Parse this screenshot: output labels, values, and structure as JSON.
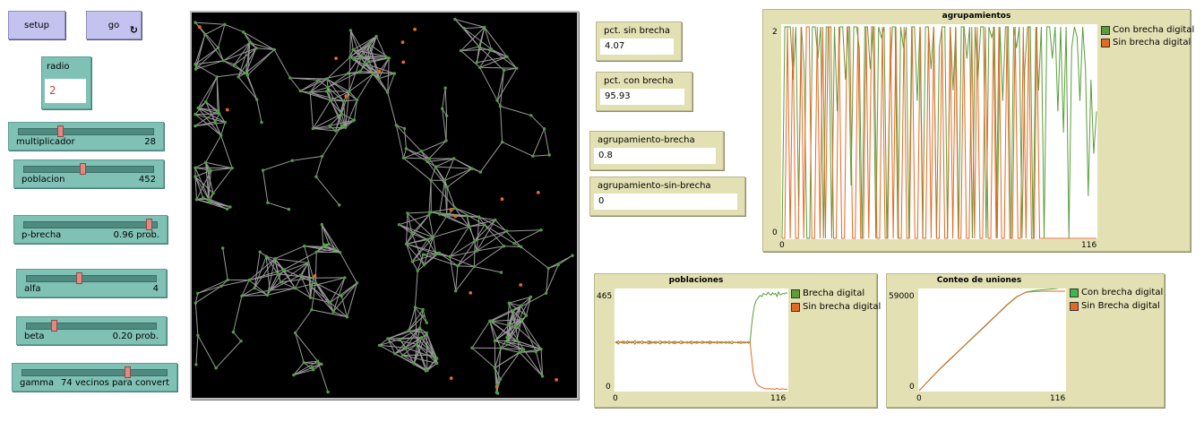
{
  "buttons": {
    "setup": "setup",
    "go": "go",
    "go_forever_glyph": "↻"
  },
  "input_radio": {
    "label": "radio",
    "value": "2"
  },
  "sliders": [
    {
      "label": "multiplicador",
      "value_text": "28",
      "fraction": 0.3
    },
    {
      "label": "poblacion",
      "value_text": "452",
      "fraction": 0.45
    },
    {
      "label": "p-brecha",
      "value_text": "0.96 prob.",
      "fraction": 0.96
    },
    {
      "label": "alfa",
      "value_text": "4",
      "fraction": 0.4
    },
    {
      "label": "beta",
      "value_text": "0.20 prob.",
      "fraction": 0.2
    },
    {
      "label": "gamma",
      "value_text": "74 vecinos para convert",
      "fraction": 0.74
    }
  ],
  "monitors": [
    {
      "label": "pct. sin brecha",
      "value": "4.07"
    },
    {
      "label": "pct. con brecha",
      "value": "95.93"
    },
    {
      "label": "agrupamiento-brecha",
      "value": "0.8"
    },
    {
      "label": "agrupamiento-sin-brecha",
      "value": "0"
    }
  ],
  "colors": {
    "green": "#5a9e3a",
    "orange": "#e36a24",
    "node_green": "#4aa33a",
    "edge_gray": "#9a9a9a",
    "bright_green": "#3cb94a"
  },
  "chart_data": [
    {
      "type": "line",
      "title": "agrupamientos",
      "xlim": [
        0,
        116
      ],
      "ylim": [
        0,
        2
      ],
      "x_ticks": [
        "0",
        "116"
      ],
      "y_ticks": [
        "0",
        "2"
      ],
      "series": [
        {
          "name": "Con brecha digital",
          "color": "#5a9e3a",
          "values": [
            0,
            2,
            2,
            2,
            1.5,
            2,
            0.3,
            2,
            1.6,
            0,
            0,
            2,
            2,
            1.7,
            2,
            0,
            2,
            2,
            0,
            2,
            1.2,
            2,
            2,
            1.5,
            2,
            0.5,
            2,
            2,
            1.8,
            0,
            2,
            2,
            1.6,
            2,
            0,
            2,
            1.9,
            2,
            0,
            1.4,
            2,
            2,
            0,
            2,
            1.8,
            2,
            0,
            2,
            2,
            1.3,
            2,
            0,
            2,
            2,
            1.6,
            2,
            0,
            1.8,
            2,
            2,
            0,
            2,
            1.4,
            2,
            0,
            2,
            2,
            1.7,
            2,
            0,
            2,
            1.5,
            2,
            2,
            0,
            2,
            1.9,
            2,
            0,
            2,
            1.3,
            2,
            2,
            0,
            2,
            1.8,
            2,
            0,
            1.6,
            2,
            2,
            0,
            2,
            1.4,
            2,
            0,
            2,
            2,
            1.7,
            2,
            1.2,
            2,
            1.0,
            2,
            0,
            1.8,
            2,
            1.9,
            1.3,
            2,
            1.6,
            0.4,
            1.5,
            0.8,
            1.2
          ]
        },
        {
          "name": "Sin brecha digital",
          "color": "#e36a24",
          "values": [
            0,
            0,
            2,
            0,
            2,
            0,
            0,
            2,
            0,
            2,
            2,
            0,
            0,
            2,
            0,
            2,
            0,
            2,
            2,
            0,
            0,
            2,
            0,
            0,
            2,
            2,
            0,
            0,
            2,
            0,
            0,
            2,
            0,
            2,
            2,
            0,
            0,
            2,
            0,
            0,
            2,
            0,
            2,
            0,
            0,
            2,
            0,
            0,
            2,
            0,
            0,
            2,
            0,
            0,
            2,
            0,
            2,
            0,
            0,
            2,
            0,
            0,
            2,
            0,
            2,
            0,
            0,
            2,
            0,
            0,
            2,
            0,
            2,
            0,
            0,
            2,
            0,
            0,
            2,
            0,
            2,
            0,
            0,
            2,
            0,
            0,
            2,
            0,
            0,
            2,
            0,
            2,
            0,
            0,
            2,
            0,
            0,
            0,
            0,
            0,
            0,
            0,
            0,
            0,
            0,
            0,
            0,
            0,
            0,
            0,
            0,
            0,
            0,
            0,
            0,
            0,
            0
          ]
        }
      ]
    },
    {
      "type": "line",
      "title": "poblaciones",
      "xlim": [
        0,
        116
      ],
      "ylim": [
        0,
        465
      ],
      "x_ticks": [
        "0",
        "116"
      ],
      "y_ticks": [
        "0",
        "465"
      ],
      "series": [
        {
          "name": "Brecha digital",
          "color": "#5a9e3a",
          "values": [
            222,
            230,
            218,
            228,
            224,
            232,
            220,
            226,
            219,
            231,
            225,
            222,
            229,
            217,
            227,
            221,
            230,
            224,
            219,
            228,
            223,
            226,
            218,
            232,
            221,
            225,
            229,
            220,
            227,
            223,
            218,
            230,
            224,
            221,
            229,
            226,
            219,
            227,
            223,
            231,
            220,
            225,
            228,
            222,
            219,
            230,
            224,
            227,
            221,
            226,
            229,
            218,
            225,
            223,
            230,
            221,
            227,
            224,
            220,
            229,
            226,
            222,
            228,
            219,
            231,
            225,
            223,
            227,
            220,
            226,
            229,
            222,
            224,
            228,
            221,
            225,
            230,
            223,
            219,
            227,
            224,
            226,
            222,
            228,
            220,
            225,
            229,
            223,
            226,
            221,
            227,
            300,
            360,
            400,
            420,
            430,
            440,
            445,
            440,
            455,
            450,
            448,
            460,
            452,
            446,
            458,
            450,
            455,
            440,
            462,
            448,
            450,
            455,
            452,
            458,
            455
          ]
        },
        {
          "name": "Sin brecha digital",
          "color": "#e36a24",
          "values": [
            228,
            222,
            232,
            224,
            229,
            221,
            231,
            226,
            233,
            223,
            228,
            230,
            224,
            234,
            226,
            231,
            222,
            229,
            233,
            224,
            228,
            225,
            233,
            220,
            230,
            226,
            222,
            231,
            224,
            229,
            233,
            222,
            227,
            231,
            223,
            226,
            232,
            225,
            228,
            220,
            231,
            227,
            223,
            229,
            233,
            221,
            227,
            224,
            230,
            225,
            222,
            233,
            226,
            229,
            221,
            230,
            224,
            227,
            232,
            223,
            225,
            229,
            223,
            232,
            221,
            226,
            228,
            224,
            231,
            225,
            222,
            229,
            227,
            223,
            230,
            226,
            221,
            228,
            232,
            224,
            227,
            225,
            229,
            223,
            231,
            226,
            222,
            227,
            225,
            230,
            225,
            160,
            90,
            60,
            40,
            28,
            22,
            18,
            15,
            12,
            10,
            9,
            8,
            10,
            7,
            9,
            6,
            8,
            11,
            7,
            6,
            8,
            9,
            7,
            6,
            8
          ]
        }
      ]
    },
    {
      "type": "line",
      "title": "Conteo de uniones",
      "xlim": [
        0,
        116
      ],
      "ylim": [
        0,
        59000
      ],
      "x_ticks": [
        "0",
        "116"
      ],
      "y_ticks": [
        "0",
        "59000"
      ],
      "series": [
        {
          "name": "Con brecha digital",
          "color": "#3cb94a",
          "values": [
            0,
            6000,
            12000,
            17500,
            23000,
            28500,
            34000,
            39500,
            45000,
            50500,
            55500,
            58500,
            59500,
            60000,
            60500,
            61500
          ]
        },
        {
          "name": "Sin Brecha digital",
          "color": "#e36a24",
          "values": [
            0,
            6200,
            12200,
            17800,
            23300,
            28800,
            34300,
            39800,
            45300,
            50800,
            55700,
            58400,
            58900,
            59000,
            59000,
            59000
          ]
        }
      ]
    }
  ]
}
